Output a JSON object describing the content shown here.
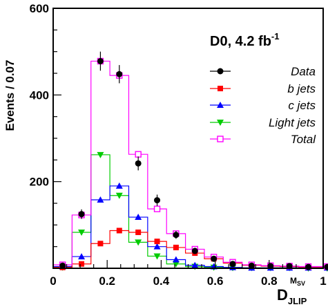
{
  "chart_data": {
    "type": "histogram",
    "experiment_label": "D0, 4.2 fb",
    "experiment_label_sup": "-1",
    "ylabel": "Events / 0.07",
    "xlabel_main": "D",
    "xlabel_sub": "JLIP",
    "xlabel_sup_main": "M",
    "xlabel_sup_sub": "SV",
    "xlim": [
      0,
      1
    ],
    "ylim": [
      0,
      600
    ],
    "x_ticks": [
      "0",
      "0.2",
      "0.4",
      "0.6",
      "0.8",
      "1"
    ],
    "y_ticks": [
      "200",
      "400",
      "600"
    ],
    "bin_edges": [
      0.0,
      0.07,
      0.14,
      0.21,
      0.28,
      0.35,
      0.42,
      0.49,
      0.56,
      0.63,
      0.7,
      0.77,
      0.84,
      0.91,
      0.98
    ],
    "legend": [
      {
        "key": "data",
        "label": "Data",
        "color": "#000000",
        "marker": "circle"
      },
      {
        "key": "b",
        "label": "b   jets",
        "color": "#ff0000",
        "marker": "square"
      },
      {
        "key": "c",
        "label": "c   jets",
        "color": "#0000ff",
        "marker": "triangle-up"
      },
      {
        "key": "light",
        "label": "Light jets",
        "color": "#00cc00",
        "marker": "triangle-down"
      },
      {
        "key": "total",
        "label": "Total",
        "color": "#ff00ff",
        "marker": "open-square"
      }
    ],
    "series": [
      {
        "key": "data",
        "values": [
          6,
          125,
          478,
          448,
          242,
          157,
          77,
          40,
          22,
          10,
          6,
          5,
          5,
          3,
          3
        ],
        "errors": [
          3,
          11,
          22,
          21,
          16,
          13,
          9,
          6,
          5,
          3,
          2,
          2,
          2,
          2,
          2
        ]
      },
      {
        "key": "b",
        "values": [
          2,
          10,
          57,
          87,
          83,
          62,
          48,
          35,
          22,
          12,
          7,
          5,
          4,
          3,
          3
        ]
      },
      {
        "key": "c",
        "values": [
          4,
          27,
          158,
          190,
          118,
          50,
          20,
          7,
          4,
          2,
          1,
          1,
          1,
          1,
          1
        ]
      },
      {
        "key": "light",
        "values": [
          2,
          83,
          262,
          168,
          60,
          28,
          10,
          4,
          2,
          1,
          1,
          1,
          1,
          0,
          0
        ]
      },
      {
        "key": "total",
        "values": [
          8,
          123,
          478,
          445,
          263,
          137,
          80,
          44,
          26,
          14,
          8,
          6,
          5,
          4,
          4
        ]
      }
    ]
  }
}
